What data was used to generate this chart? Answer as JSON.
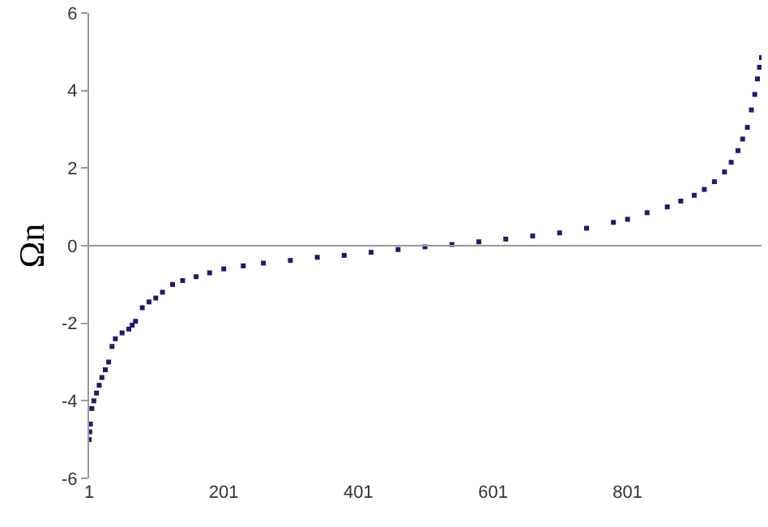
{
  "chart_data": {
    "type": "scatter",
    "ylabel": "Ωn",
    "marker": "square",
    "ref_lines": [
      {
        "axis": "y",
        "value": 0,
        "color": "#999999"
      }
    ],
    "x": [
      1,
      2,
      3,
      5,
      8,
      12,
      16,
      20,
      25,
      30,
      35,
      40,
      50,
      60,
      65,
      70,
      80,
      90,
      100,
      110,
      125,
      140,
      160,
      180,
      201,
      230,
      260,
      300,
      340,
      380,
      420,
      460,
      500,
      540,
      580,
      620,
      660,
      700,
      740,
      780,
      801,
      830,
      860,
      880,
      900,
      915,
      930,
      945,
      955,
      965,
      972,
      979,
      985,
      990,
      994,
      997,
      1000
    ],
    "series": [
      {
        "color": "#1c1c6e",
        "values": [
          -5.0,
          -4.8,
          -4.6,
          -4.2,
          -4.0,
          -3.8,
          -3.6,
          -3.4,
          -3.2,
          -3.0,
          -2.6,
          -2.4,
          -2.25,
          -2.15,
          -2.05,
          -1.95,
          -1.6,
          -1.45,
          -1.35,
          -1.2,
          -1.0,
          -0.9,
          -0.8,
          -0.7,
          -0.6,
          -0.52,
          -0.45,
          -0.38,
          -0.3,
          -0.25,
          -0.17,
          -0.1,
          -0.03,
          0.03,
          0.1,
          0.17,
          0.25,
          0.33,
          0.45,
          0.6,
          0.68,
          0.85,
          1.0,
          1.15,
          1.3,
          1.45,
          1.65,
          1.9,
          2.15,
          2.45,
          2.75,
          3.05,
          3.5,
          3.9,
          4.3,
          4.6,
          4.85
        ]
      }
    ],
    "xlim": [
      1,
      1000
    ],
    "xticks": [
      1,
      201,
      401,
      601,
      801
    ],
    "ylim": [
      -6,
      6
    ],
    "yticks": [
      -6,
      -4,
      -2,
      0,
      2,
      4,
      6
    ]
  }
}
